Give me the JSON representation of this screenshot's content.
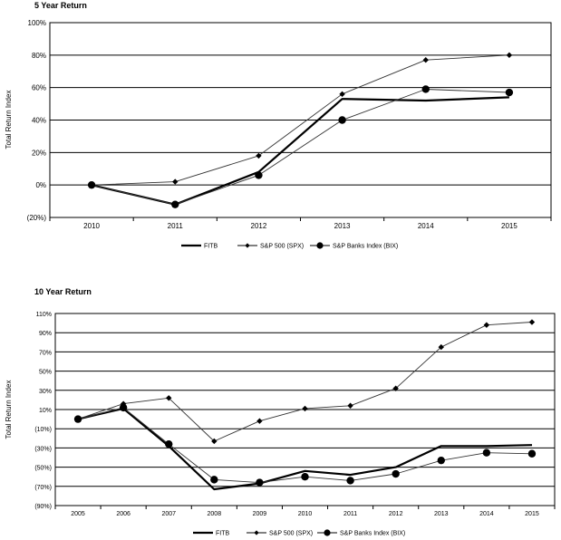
{
  "chart_data": [
    {
      "type": "line",
      "title": "5 Year Return",
      "ylabel": "Total Return Index",
      "categories": [
        "2010",
        "2011",
        "2012",
        "2013",
        "2014",
        "2015"
      ],
      "ylim": [
        -20,
        100
      ],
      "yticks": [
        -20,
        0,
        20,
        40,
        60,
        80,
        100
      ],
      "yticklabels": [
        "(20%)",
        "0%",
        "20%",
        "40%",
        "60%",
        "80%",
        "100%"
      ],
      "grid": true,
      "legend": "bottom",
      "series": [
        {
          "name": "FITB",
          "marker": "none",
          "line": "thick",
          "values": [
            0,
            -12,
            8,
            53,
            52,
            54
          ]
        },
        {
          "name": "S&P 500 (SPX)",
          "marker": "diamond",
          "line": "thin",
          "values": [
            0,
            2,
            18,
            56,
            77,
            80
          ]
        },
        {
          "name": "S&P Banks Index (BIX)",
          "marker": "circle",
          "line": "thin",
          "values": [
            0,
            -12,
            6,
            40,
            59,
            57
          ]
        }
      ]
    },
    {
      "type": "line",
      "title": "10 Year Return",
      "ylabel": "Total Return Index",
      "categories": [
        "2005",
        "2006",
        "2007",
        "2008",
        "2009",
        "2010",
        "2011",
        "2012",
        "2013",
        "2014",
        "2015"
      ],
      "ylim": [
        -90,
        110
      ],
      "yticks": [
        -90,
        -70,
        -50,
        -30,
        -10,
        10,
        30,
        50,
        70,
        90,
        110
      ],
      "yticklabels": [
        "(90%)",
        "(70%)",
        "(50%)",
        "(30%)",
        "(10%)",
        "10%",
        "30%",
        "50%",
        "70%",
        "90%",
        "110%"
      ],
      "grid": true,
      "legend": "bottom",
      "series": [
        {
          "name": "FITB",
          "marker": "none",
          "line": "thick",
          "values": [
            0,
            11,
            -28,
            -73,
            -67,
            -54,
            -58,
            -50,
            -28,
            -28,
            -27
          ]
        },
        {
          "name": "S&P 500 (SPX)",
          "marker": "diamond",
          "line": "thin",
          "values": [
            0,
            16,
            22,
            -23,
            -2,
            11,
            14,
            32,
            75,
            98,
            101
          ]
        },
        {
          "name": "S&P Banks Index (BIX)",
          "marker": "circle",
          "line": "thin",
          "values": [
            0,
            12,
            -26,
            -63,
            -66,
            -60,
            -64,
            -57,
            -43,
            -35,
            -36
          ]
        }
      ]
    }
  ]
}
